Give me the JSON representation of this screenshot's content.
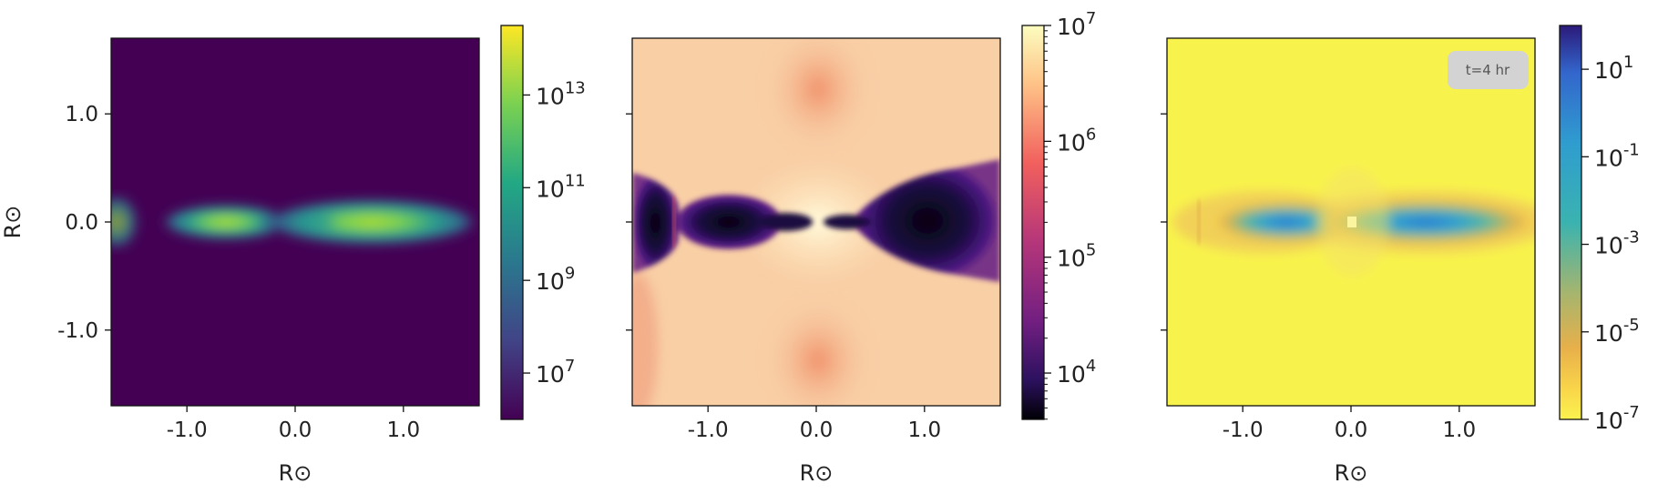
{
  "chart_data": [
    {
      "type": "heatmap",
      "colormap": "viridis",
      "color_scale": "log",
      "xlabel": "R⊙",
      "ylabel": "R⊙",
      "xlim": [
        -1.7,
        1.7
      ],
      "ylim": [
        -1.7,
        1.7
      ],
      "x_ticks": [
        "-1.0",
        "0.0",
        "1.0"
      ],
      "y_ticks": [
        "1.0",
        "0.0",
        "-1.0"
      ],
      "colorbar": {
        "range_exponent": [
          6,
          14.5
        ],
        "ticks": [
          {
            "base": "10",
            "exp": "13"
          },
          {
            "base": "10",
            "exp": "11"
          },
          {
            "base": "10",
            "exp": "9"
          },
          {
            "base": "10",
            "exp": "7"
          }
        ]
      },
      "annotation": ""
    },
    {
      "type": "heatmap",
      "colormap": "magma",
      "color_scale": "log",
      "xlabel": "R⊙",
      "ylabel": "",
      "xlim": [
        -1.7,
        1.7
      ],
      "ylim": [
        -1.7,
        1.7
      ],
      "x_ticks": [
        "-1.0",
        "0.0",
        "1.0"
      ],
      "y_ticks": [],
      "colorbar": {
        "range_exponent": [
          3.6,
          7
        ],
        "ticks": [
          {
            "base": "10",
            "exp": "7"
          },
          {
            "base": "10",
            "exp": "6"
          },
          {
            "base": "10",
            "exp": "5"
          },
          {
            "base": "10",
            "exp": "4"
          }
        ]
      },
      "annotation": ""
    },
    {
      "type": "heatmap",
      "colormap": "plasma_r",
      "color_scale": "log",
      "xlabel": "R⊙",
      "ylabel": "",
      "xlim": [
        -1.7,
        1.7
      ],
      "ylim": [
        -1.7,
        1.7
      ],
      "x_ticks": [
        "-1.0",
        "0.0",
        "1.0"
      ],
      "y_ticks": [],
      "colorbar": {
        "range_exponent": [
          -7,
          2
        ],
        "ticks": [
          {
            "base": "10",
            "exp": "1"
          },
          {
            "base": "10",
            "exp": "-1"
          },
          {
            "base": "10",
            "exp": "-3"
          },
          {
            "base": "10",
            "exp": "-5"
          },
          {
            "base": "10",
            "exp": "-7"
          }
        ]
      },
      "annotation": "t=4 hr"
    }
  ]
}
